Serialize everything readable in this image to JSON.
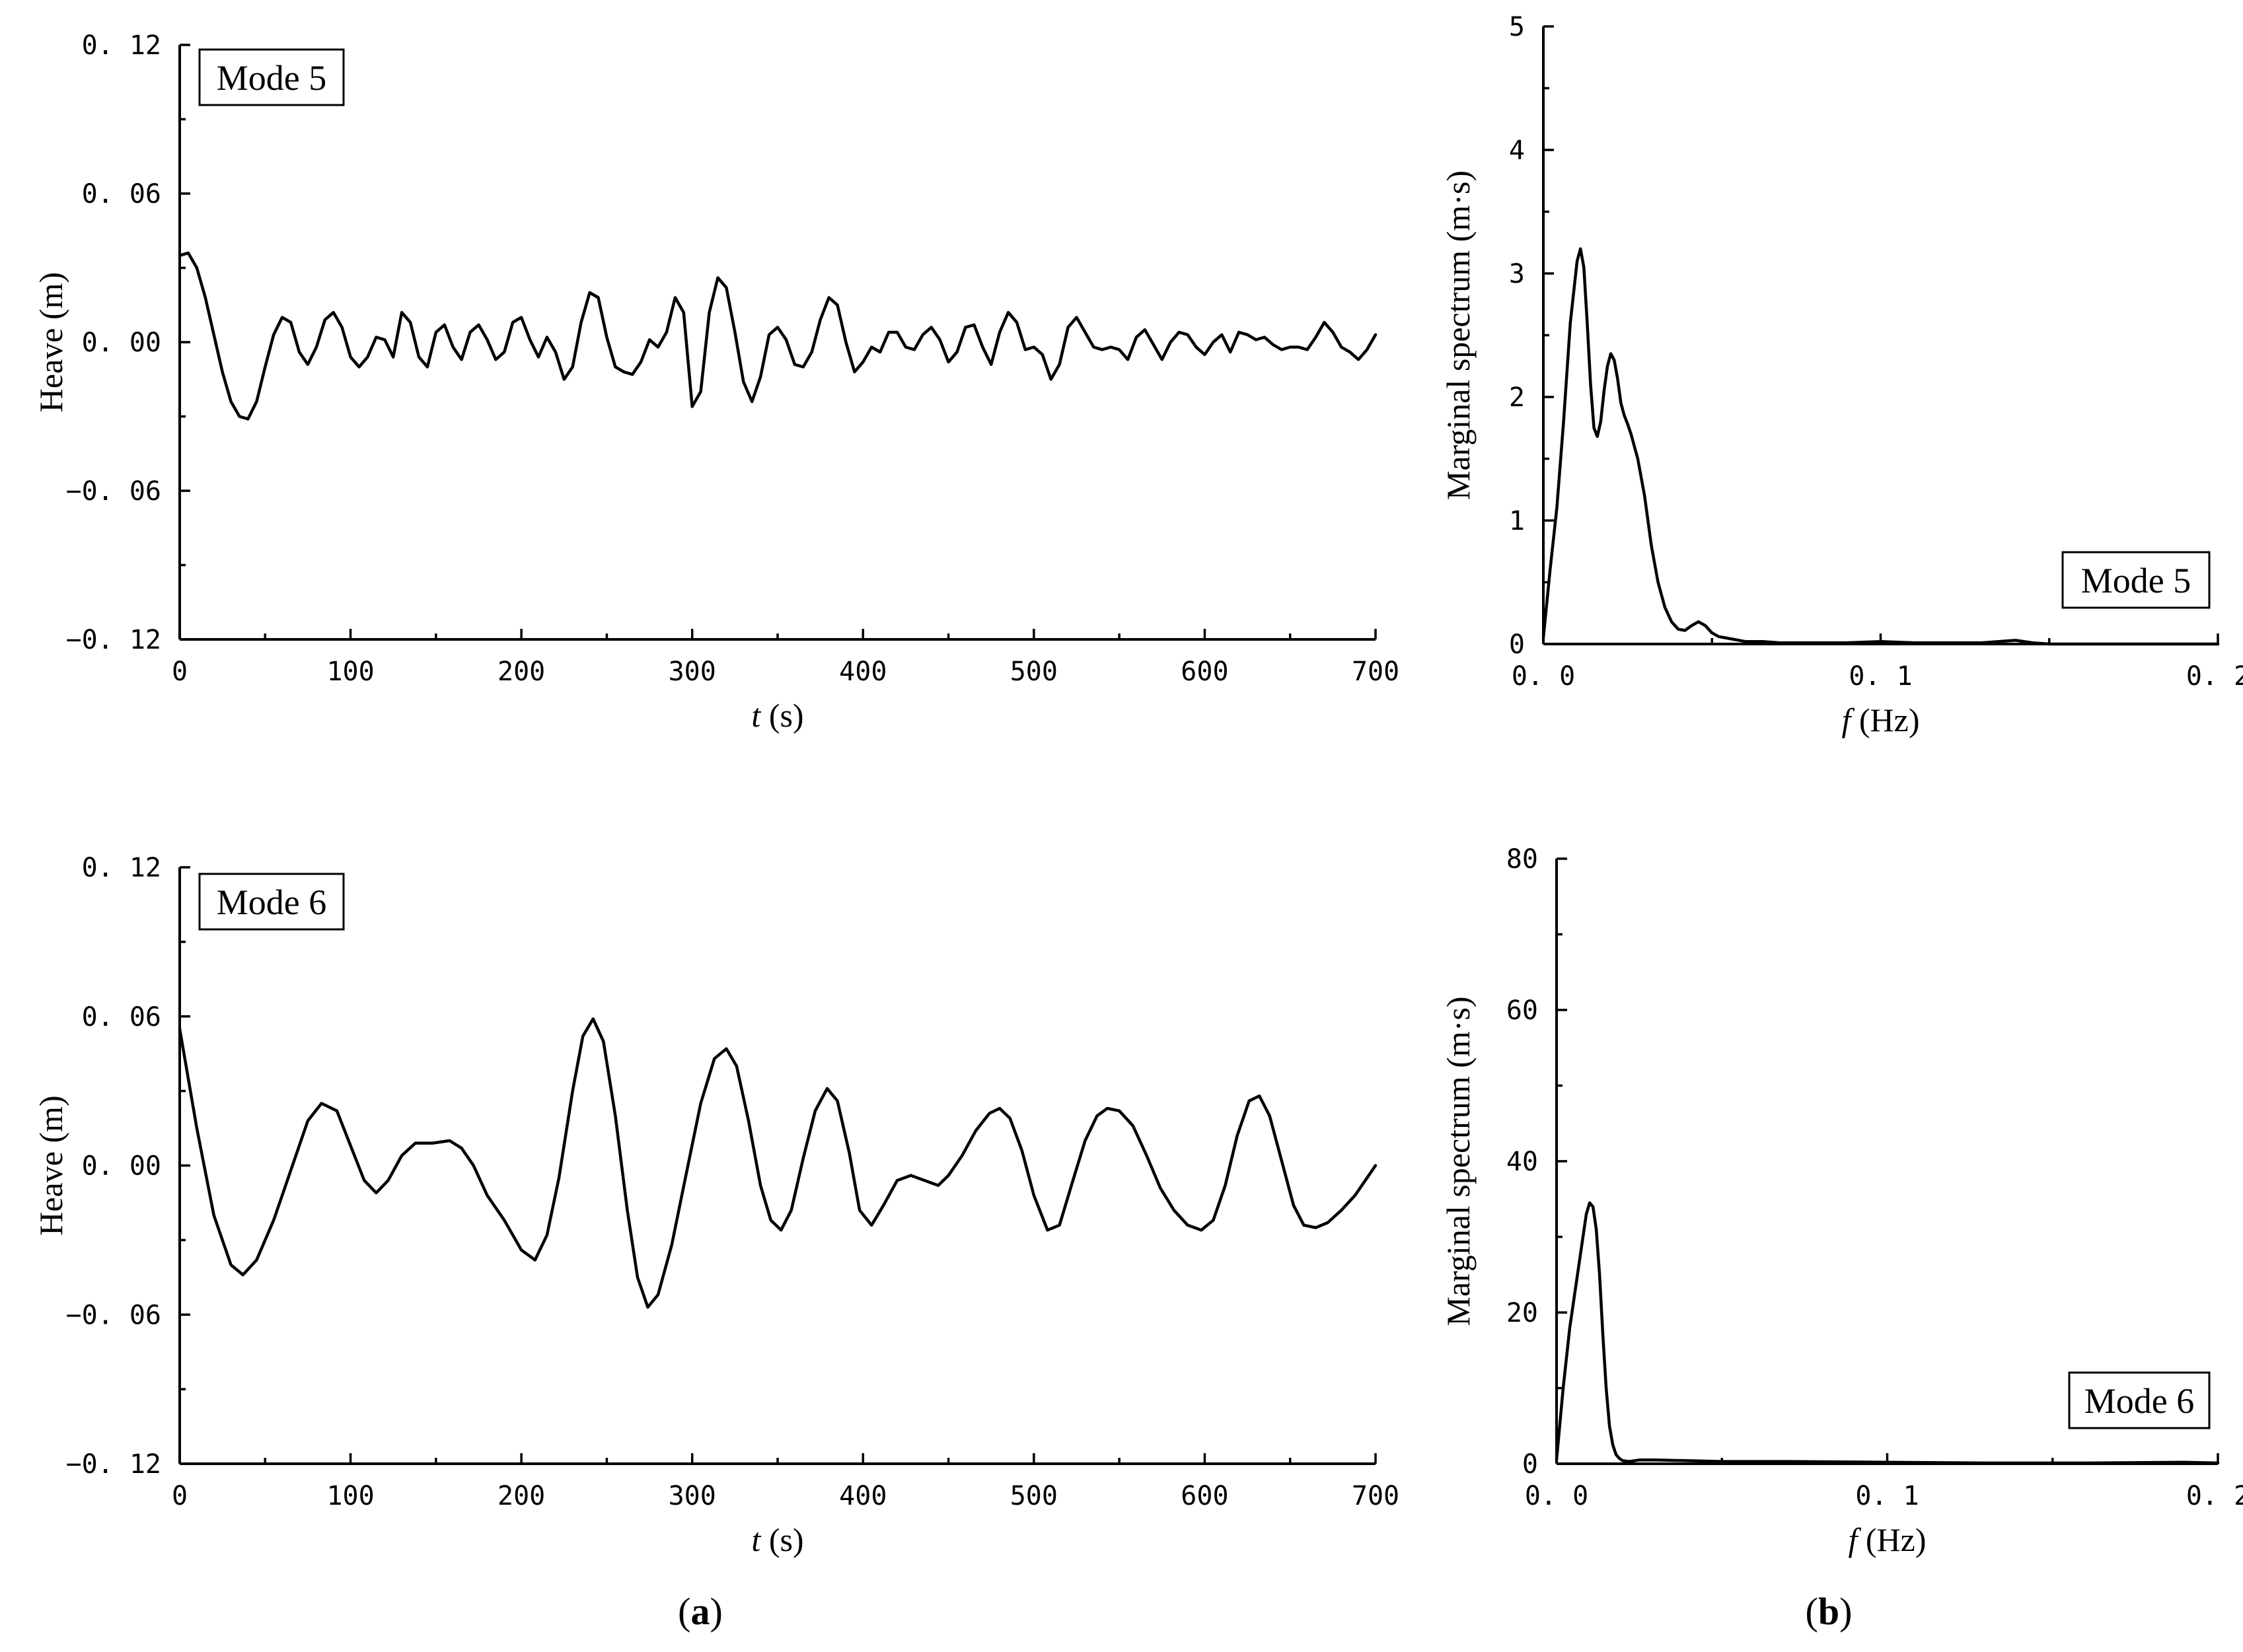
{
  "chart_data": [
    {
      "type": "line",
      "panel": "a",
      "xlabel_italic": "t",
      "xlabel_rest": " (s)",
      "ylabel": "Heave (m)",
      "xlim": [
        0,
        700
      ],
      "ylim": [
        -0.12,
        0.12
      ],
      "xticks": [
        0,
        100,
        200,
        300,
        400,
        500,
        600,
        700
      ],
      "xtick_labels": [
        "0",
        "100",
        "200",
        "300",
        "400",
        "500",
        "600",
        "700"
      ],
      "yticks": [
        0.12,
        0.06,
        0.0,
        -0.06,
        -0.12
      ],
      "ytick_labels": [
        "0. 12",
        "0. 06",
        "0. 00",
        "−0. 06",
        "−0. 12"
      ],
      "legend": "Mode 5",
      "legend_position": "top-left",
      "grid": false,
      "series": [
        {
          "x": [
            0,
            5,
            10,
            15,
            20,
            25,
            30,
            35,
            40,
            45,
            50,
            55,
            60,
            65,
            70,
            75,
            80,
            85,
            90,
            95,
            100,
            105,
            110,
            115,
            120,
            125,
            130,
            135,
            140,
            145,
            150,
            155,
            160,
            165,
            170,
            175,
            180,
            185,
            190,
            195,
            200,
            205,
            210,
            215,
            220,
            225,
            230,
            235,
            240,
            245,
            250,
            255,
            260,
            265,
            270,
            275,
            280,
            285,
            290,
            295,
            300,
            305,
            310,
            315,
            320,
            325,
            330,
            335,
            340,
            345,
            350,
            355,
            360,
            365,
            370,
            375,
            380,
            385,
            390,
            395,
            400,
            405,
            410,
            415,
            420,
            425,
            430,
            435,
            440,
            445,
            450,
            455,
            460,
            465,
            470,
            475,
            480,
            485,
            490,
            495,
            500,
            505,
            510,
            515,
            520,
            525,
            530,
            535,
            540,
            545,
            550,
            555,
            560,
            565,
            570,
            575,
            580,
            585,
            590,
            595,
            600,
            605,
            610,
            615,
            620,
            625,
            630,
            635,
            640,
            645,
            650,
            655,
            660,
            665,
            670,
            675,
            680,
            685,
            690,
            695,
            700
          ],
          "y": [
            0.035,
            0.036,
            0.03,
            0.018,
            0.003,
            -0.012,
            -0.024,
            -0.03,
            -0.031,
            -0.024,
            -0.01,
            0.003,
            0.01,
            0.008,
            -0.004,
            -0.009,
            -0.002,
            0.009,
            0.012,
            0.006,
            -0.006,
            -0.01,
            -0.006,
            0.002,
            0.001,
            -0.006,
            0.012,
            0.008,
            -0.006,
            -0.01,
            0.004,
            0.007,
            -0.002,
            -0.007,
            0.004,
            0.007,
            0.001,
            -0.007,
            -0.004,
            0.008,
            0.01,
            0.001,
            -0.006,
            0.002,
            -0.004,
            -0.015,
            -0.01,
            0.008,
            0.02,
            0.018,
            0.002,
            -0.01,
            -0.012,
            -0.013,
            -0.008,
            0.001,
            -0.002,
            0.004,
            0.018,
            0.012,
            -0.026,
            -0.02,
            0.012,
            0.026,
            0.022,
            0.004,
            -0.016,
            -0.024,
            -0.014,
            0.003,
            0.006,
            0.001,
            -0.009,
            -0.01,
            -0.004,
            0.009,
            0.018,
            0.015,
            0.0,
            -0.012,
            -0.008,
            -0.002,
            -0.004,
            0.004,
            0.004,
            -0.002,
            -0.003,
            0.003,
            0.006,
            0.001,
            -0.008,
            -0.004,
            0.006,
            0.007,
            -0.002,
            -0.009,
            0.004,
            0.012,
            0.008,
            -0.003,
            -0.002,
            -0.005,
            -0.015,
            -0.009,
            0.006,
            0.01,
            0.004,
            -0.002,
            -0.003,
            -0.002,
            -0.003,
            -0.007,
            0.002,
            0.005,
            -0.001,
            -0.007,
            0.0,
            0.004,
            0.003,
            -0.002,
            -0.005,
            0.0,
            0.003,
            -0.004,
            0.004,
            0.003,
            0.001,
            0.002,
            -0.001,
            -0.003,
            -0.002,
            -0.002,
            -0.003,
            0.002,
            0.008,
            0.004,
            -0.002,
            -0.004,
            -0.007,
            -0.003,
            0.003
          ]
        }
      ]
    },
    {
      "type": "line",
      "panel": "b",
      "xlabel_italic": "f",
      "xlabel_rest": " (Hz)",
      "ylabel": "Marginal spectrum (m·s)",
      "xlim": [
        0,
        0.2
      ],
      "ylim": [
        0,
        5
      ],
      "xticks": [
        0,
        0.1,
        0.2
      ],
      "xtick_labels": [
        "0. 0",
        "0. 1",
        "0. 2"
      ],
      "yticks": [
        0,
        1,
        2,
        3,
        4,
        5
      ],
      "ytick_labels": [
        "0",
        "1",
        "2",
        "3",
        "4",
        "5"
      ],
      "legend": "Mode 5",
      "legend_position": "bottom-right",
      "grid": false,
      "series": [
        {
          "x": [
            0.0,
            0.002,
            0.004,
            0.006,
            0.008,
            0.01,
            0.011,
            0.012,
            0.013,
            0.014,
            0.015,
            0.016,
            0.017,
            0.018,
            0.019,
            0.02,
            0.021,
            0.022,
            0.023,
            0.024,
            0.025,
            0.026,
            0.028,
            0.03,
            0.032,
            0.034,
            0.036,
            0.038,
            0.04,
            0.042,
            0.044,
            0.046,
            0.048,
            0.05,
            0.052,
            0.054,
            0.056,
            0.058,
            0.06,
            0.065,
            0.07,
            0.075,
            0.08,
            0.09,
            0.1,
            0.11,
            0.12,
            0.13,
            0.135,
            0.14,
            0.145,
            0.15,
            0.16,
            0.17,
            0.18,
            0.19,
            0.2
          ],
          "y": [
            0.05,
            0.6,
            1.1,
            1.8,
            2.6,
            3.1,
            3.2,
            3.05,
            2.6,
            2.1,
            1.75,
            1.68,
            1.8,
            2.05,
            2.25,
            2.35,
            2.3,
            2.15,
            1.95,
            1.85,
            1.78,
            1.7,
            1.5,
            1.2,
            0.8,
            0.5,
            0.3,
            0.18,
            0.12,
            0.11,
            0.15,
            0.18,
            0.15,
            0.09,
            0.06,
            0.05,
            0.04,
            0.03,
            0.02,
            0.02,
            0.01,
            0.01,
            0.01,
            0.01,
            0.02,
            0.01,
            0.01,
            0.01,
            0.02,
            0.03,
            0.01,
            0.0,
            0.0,
            0.0,
            0.0,
            0.0,
            0.0
          ]
        }
      ]
    },
    {
      "type": "line",
      "panel": "a",
      "xlabel_italic": "t",
      "xlabel_rest": " (s)",
      "ylabel": "Heave (m)",
      "xlim": [
        0,
        700
      ],
      "ylim": [
        -0.12,
        0.12
      ],
      "xticks": [
        0,
        100,
        200,
        300,
        400,
        500,
        600,
        700
      ],
      "xtick_labels": [
        "0",
        "100",
        "200",
        "300",
        "400",
        "500",
        "600",
        "700"
      ],
      "yticks": [
        0.12,
        0.06,
        0.0,
        -0.06,
        -0.12
      ],
      "ytick_labels": [
        "0. 12",
        "0. 06",
        "0. 00",
        "−0. 06",
        "−0. 12"
      ],
      "legend": "Mode 6",
      "legend_position": "top-left",
      "grid": false,
      "series": [
        {
          "x": [
            0,
            10,
            20,
            30,
            37,
            45,
            55,
            65,
            75,
            83,
            92,
            100,
            108,
            115,
            122,
            130,
            138,
            148,
            158,
            165,
            172,
            180,
            190,
            200,
            208,
            215,
            222,
            230,
            236,
            242,
            248,
            255,
            262,
            268,
            274,
            280,
            288,
            296,
            305,
            313,
            320,
            326,
            333,
            340,
            346,
            352,
            358,
            365,
            372,
            379,
            385,
            392,
            398,
            405,
            412,
            420,
            428,
            436,
            444,
            450,
            458,
            466,
            474,
            480,
            486,
            493,
            500,
            508,
            515,
            522,
            530,
            537,
            543,
            550,
            558,
            566,
            574,
            582,
            590,
            598,
            605,
            612,
            619,
            626,
            632,
            638,
            645,
            652,
            658,
            665,
            672,
            680,
            688,
            695,
            700
          ],
          "y": [
            0.055,
            0.015,
            -0.02,
            -0.04,
            -0.044,
            -0.038,
            -0.022,
            -0.002,
            0.018,
            0.025,
            0.022,
            0.008,
            -0.006,
            -0.011,
            -0.006,
            0.004,
            0.009,
            0.009,
            0.01,
            0.007,
            0.0,
            -0.012,
            -0.022,
            -0.034,
            -0.038,
            -0.028,
            -0.005,
            0.03,
            0.052,
            0.059,
            0.05,
            0.02,
            -0.018,
            -0.045,
            -0.057,
            -0.052,
            -0.032,
            -0.005,
            0.025,
            0.043,
            0.047,
            0.04,
            0.018,
            -0.008,
            -0.022,
            -0.026,
            -0.018,
            0.003,
            0.022,
            0.031,
            0.026,
            0.005,
            -0.018,
            -0.024,
            -0.016,
            -0.006,
            -0.004,
            -0.006,
            -0.008,
            -0.004,
            0.004,
            0.014,
            0.021,
            0.023,
            0.019,
            0.006,
            -0.012,
            -0.026,
            -0.024,
            -0.008,
            0.01,
            0.02,
            0.023,
            0.022,
            0.016,
            0.004,
            -0.009,
            -0.018,
            -0.024,
            -0.026,
            -0.022,
            -0.008,
            0.012,
            0.026,
            0.028,
            0.02,
            0.002,
            -0.016,
            -0.024,
            -0.025,
            -0.023,
            -0.018,
            -0.012,
            -0.005,
            0.0
          ]
        }
      ]
    },
    {
      "type": "line",
      "panel": "b",
      "xlabel_italic": "f",
      "xlabel_rest": " (Hz)",
      "ylabel": "Marginal spectrum (m·s)",
      "xlim": [
        0,
        0.2
      ],
      "ylim": [
        0,
        80
      ],
      "xticks": [
        0,
        0.1,
        0.2
      ],
      "xtick_labels": [
        "0. 0",
        "0. 1",
        "0. 2"
      ],
      "yticks": [
        0,
        20,
        40,
        60,
        80
      ],
      "ytick_labels": [
        "0",
        "20",
        "40",
        "60",
        "80"
      ],
      "legend": "Mode 6",
      "legend_position": "bottom-right",
      "grid": false,
      "series": [
        {
          "x": [
            0.0,
            0.002,
            0.004,
            0.006,
            0.008,
            0.009,
            0.01,
            0.011,
            0.012,
            0.013,
            0.014,
            0.015,
            0.016,
            0.017,
            0.018,
            0.019,
            0.02,
            0.022,
            0.025,
            0.03,
            0.04,
            0.05,
            0.07,
            0.1,
            0.13,
            0.16,
            0.19,
            0.2
          ],
          "y": [
            0.5,
            10,
            18,
            24,
            30,
            33,
            34.5,
            34,
            31,
            25,
            17,
            10,
            5,
            2.5,
            1.2,
            0.7,
            0.4,
            0.3,
            0.5,
            0.5,
            0.4,
            0.3,
            0.3,
            0.2,
            0.1,
            0.1,
            0.2,
            0.1
          ]
        }
      ]
    }
  ],
  "panel_labels": {
    "a": {
      "open": "(",
      "letter": "a",
      "close": ")"
    },
    "b": {
      "open": "(",
      "letter": "b",
      "close": ")"
    }
  }
}
